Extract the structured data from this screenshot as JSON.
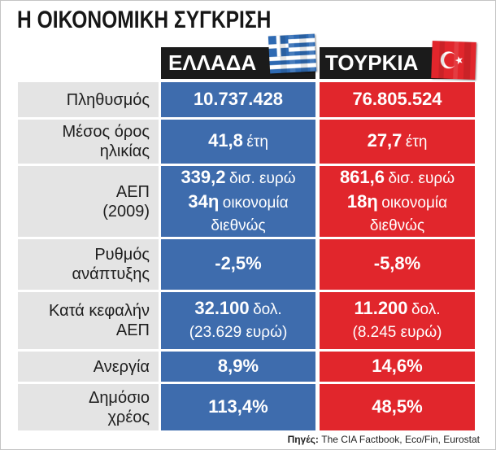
{
  "chart_data": {
    "type": "table",
    "title": "Η ΟΙΚΟΝΟΜΙΚΗ ΣΥΓΚΡΙΣΗ",
    "columns": {
      "greece": {
        "label": "ΕΛΛΑΔΑ",
        "flag_icon": "greek-flag-icon",
        "color": "#3e6cad"
      },
      "turkey": {
        "label": "ΤΟΥΡΚΙΑ",
        "flag_icon": "turkish-flag-icon",
        "color": "#e1262c"
      }
    },
    "rows": [
      {
        "label": [
          "Πληθυσμός"
        ],
        "greece": [
          {
            "strong": "10.737.428"
          }
        ],
        "turkey": [
          {
            "strong": "76.805.524"
          }
        ]
      },
      {
        "label": [
          "Μέσος όρος",
          "ηλικίας"
        ],
        "greece": [
          {
            "strong": "41,8",
            "text": "έτη"
          }
        ],
        "turkey": [
          {
            "strong": "27,7",
            "text": "έτη"
          }
        ]
      },
      {
        "label": [
          "ΑΕΠ",
          "(2009)"
        ],
        "greece": [
          {
            "strong": "339,2",
            "text": "δισ. ευρώ"
          },
          {
            "strong": "34η",
            "text": "οικονομία"
          },
          {
            "text": "διεθνώς"
          }
        ],
        "turkey": [
          {
            "strong": "861,6",
            "text": "δισ. ευρώ"
          },
          {
            "strong": "18η",
            "text": "οικονομία"
          },
          {
            "text": "διεθνώς"
          }
        ]
      },
      {
        "label": [
          "Ρυθμός",
          "ανάπτυξης"
        ],
        "greece": [
          {
            "strong": "-2,5%"
          }
        ],
        "turkey": [
          {
            "strong": "-5,8%"
          }
        ]
      },
      {
        "label": [
          "Κατά κεφαλήν",
          "ΑΕΠ"
        ],
        "greece": [
          {
            "strong": "32.100",
            "text": "δολ."
          },
          {
            "text": "(23.629 ευρώ)"
          }
        ],
        "turkey": [
          {
            "strong": "11.200",
            "text": "δολ."
          },
          {
            "text": "(8.245 ευρώ)"
          }
        ]
      },
      {
        "label": [
          "Ανεργία"
        ],
        "greece": [
          {
            "strong": "8,9%"
          }
        ],
        "turkey": [
          {
            "strong": "14,6%"
          }
        ]
      },
      {
        "label": [
          "Δημόσιο",
          "χρέος"
        ],
        "greece": [
          {
            "strong": "113,4%"
          }
        ],
        "turkey": [
          {
            "strong": "48,5%"
          }
        ]
      }
    ],
    "source": {
      "label": "Πηγές:",
      "text": "The CIA Factbook, Eco/Fin, Eurostat"
    }
  },
  "colors": {
    "header_background": "#1b1b1b",
    "label_background": "#e4e4e4",
    "value_text": "#ffffff"
  }
}
